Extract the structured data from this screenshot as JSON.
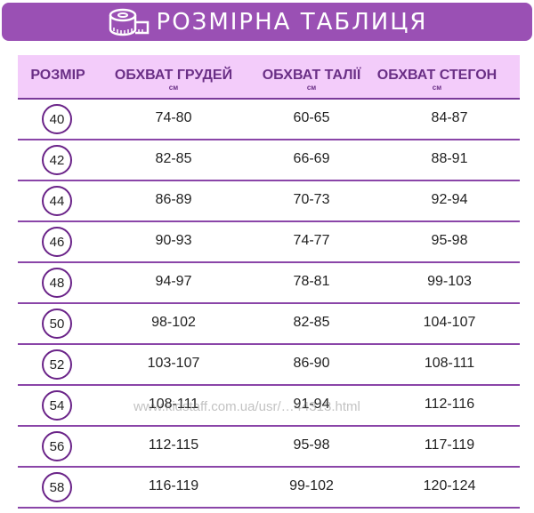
{
  "banner": {
    "title": "РОЗМІРНА ТАБЛИЦЯ",
    "icon": "measuring-tape-icon",
    "color": "#9a50b4"
  },
  "table": {
    "headers": [
      {
        "label": "РОЗМІР",
        "unit": ""
      },
      {
        "label": "ОБХВАТ ГРУДЕЙ",
        "unit": "см"
      },
      {
        "label": "ОБХВАТ ТАЛІЇ",
        "unit": "см"
      },
      {
        "label": "ОБХВАТ СТЕГОН",
        "unit": "см"
      }
    ],
    "rows": [
      [
        "40",
        "74-80",
        "60-65",
        "84-87"
      ],
      [
        "42",
        "82-85",
        "66-69",
        "88-91"
      ],
      [
        "44",
        "86-89",
        "70-73",
        "92-94"
      ],
      [
        "46",
        "90-93",
        "74-77",
        "95-98"
      ],
      [
        "48",
        "94-97",
        "78-81",
        "99-103"
      ],
      [
        "50",
        "98-102",
        "82-85",
        "104-107"
      ],
      [
        "52",
        "103-107",
        "86-90",
        "108-111"
      ],
      [
        "54",
        "108-111",
        "91-94",
        "112-116"
      ],
      [
        "56",
        "112-115",
        "95-98",
        "117-119"
      ],
      [
        "58",
        "116-119",
        "99-102",
        "120-124"
      ]
    ]
  },
  "watermark": "www.kidstaff.com.ua/usr/…44313.html"
}
